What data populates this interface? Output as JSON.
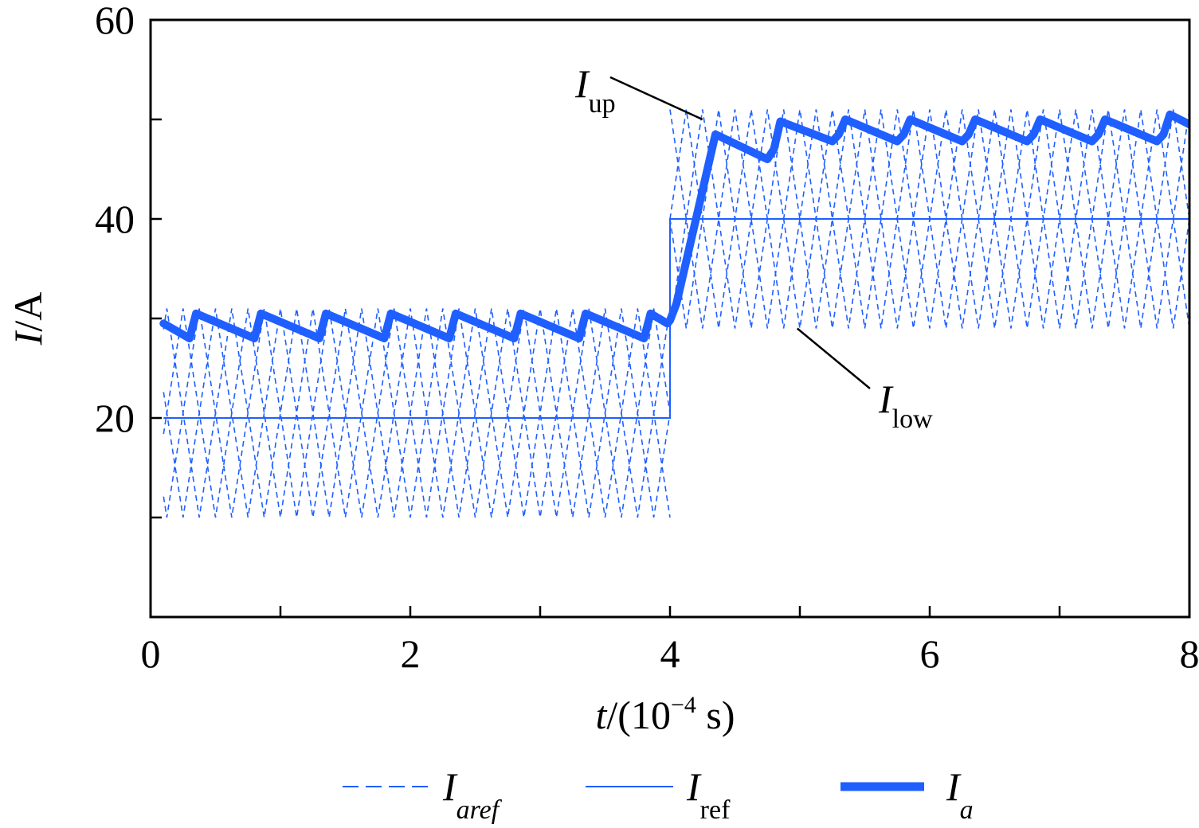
{
  "chart_data": {
    "type": "line",
    "xlabel": {
      "var": "t",
      "text": "/(10",
      "exp": "−4",
      "unit": " s)"
    },
    "ylabel": {
      "var": "I",
      "unit": "/A"
    },
    "xlim": [
      0,
      8
    ],
    "ylim": [
      0,
      60
    ],
    "x_ticks_major": [
      0,
      2,
      4,
      6,
      8
    ],
    "x_ticks_minor": [
      1,
      3,
      5,
      7
    ],
    "x_tick_labels": [
      "0",
      "2",
      "4",
      "6",
      "8"
    ],
    "y_ticks_major": [
      20,
      40,
      60
    ],
    "y_ticks_minor": [
      10,
      30,
      50
    ],
    "y_tick_labels": [
      "20",
      "40",
      "60"
    ],
    "grid": false,
    "legend_position": "bottom",
    "series": [
      {
        "name": "aref",
        "legend": {
          "main": "I",
          "sub": "aref"
        },
        "style": "dashed",
        "color": "#1f5fff",
        "phases": 4,
        "segments": [
          {
            "t_start": 0.1,
            "t_end": 4.0,
            "period": 0.5,
            "high": 31,
            "low": 10
          },
          {
            "t_start": 4.0,
            "t_end": 8.0,
            "period": 0.5,
            "high": 51,
            "low": 29
          }
        ]
      },
      {
        "name": "ref",
        "legend": {
          "main": "I",
          "sub": "ref"
        },
        "style": "solid",
        "color": "#1f5fff",
        "x": [
          0.1,
          4.0,
          4.0,
          8.0
        ],
        "y": [
          20,
          20,
          40,
          40
        ]
      },
      {
        "name": "a",
        "legend": {
          "main": "I",
          "sub": "a"
        },
        "style": "bold",
        "color": "#1f5fff",
        "x": [
          0.1,
          0.3,
          0.35,
          0.8,
          0.85,
          1.3,
          1.35,
          1.8,
          1.85,
          2.3,
          2.35,
          2.8,
          2.85,
          3.3,
          3.35,
          3.8,
          3.85,
          3.98,
          4.0,
          4.05,
          4.2,
          4.35,
          4.75,
          4.8,
          4.85,
          5.25,
          5.3,
          5.35,
          5.75,
          5.8,
          5.85,
          6.25,
          6.3,
          6.35,
          6.75,
          6.8,
          6.85,
          7.25,
          7.3,
          7.35,
          7.75,
          7.8,
          7.85,
          8.0
        ],
        "y": [
          29.5,
          28.0,
          30.5,
          28.0,
          30.5,
          28.0,
          30.5,
          28.0,
          30.5,
          28.0,
          30.5,
          28.0,
          30.5,
          28.0,
          30.5,
          28.0,
          30.5,
          29.5,
          29.8,
          31.5,
          40.0,
          48.5,
          46.0,
          47.0,
          49.8,
          47.8,
          48.5,
          50.0,
          47.8,
          48.5,
          50.0,
          47.8,
          48.5,
          50.0,
          47.8,
          48.5,
          50.0,
          47.8,
          48.5,
          50.0,
          47.8,
          48.5,
          50.5,
          49.5
        ]
      }
    ],
    "annotations": [
      {
        "main": "I",
        "sub": "up",
        "at_x": 4.25,
        "at_y": 50.0
      },
      {
        "main": "I",
        "sub": "low",
        "at_x": 4.98,
        "at_y": 29.0
      }
    ]
  }
}
